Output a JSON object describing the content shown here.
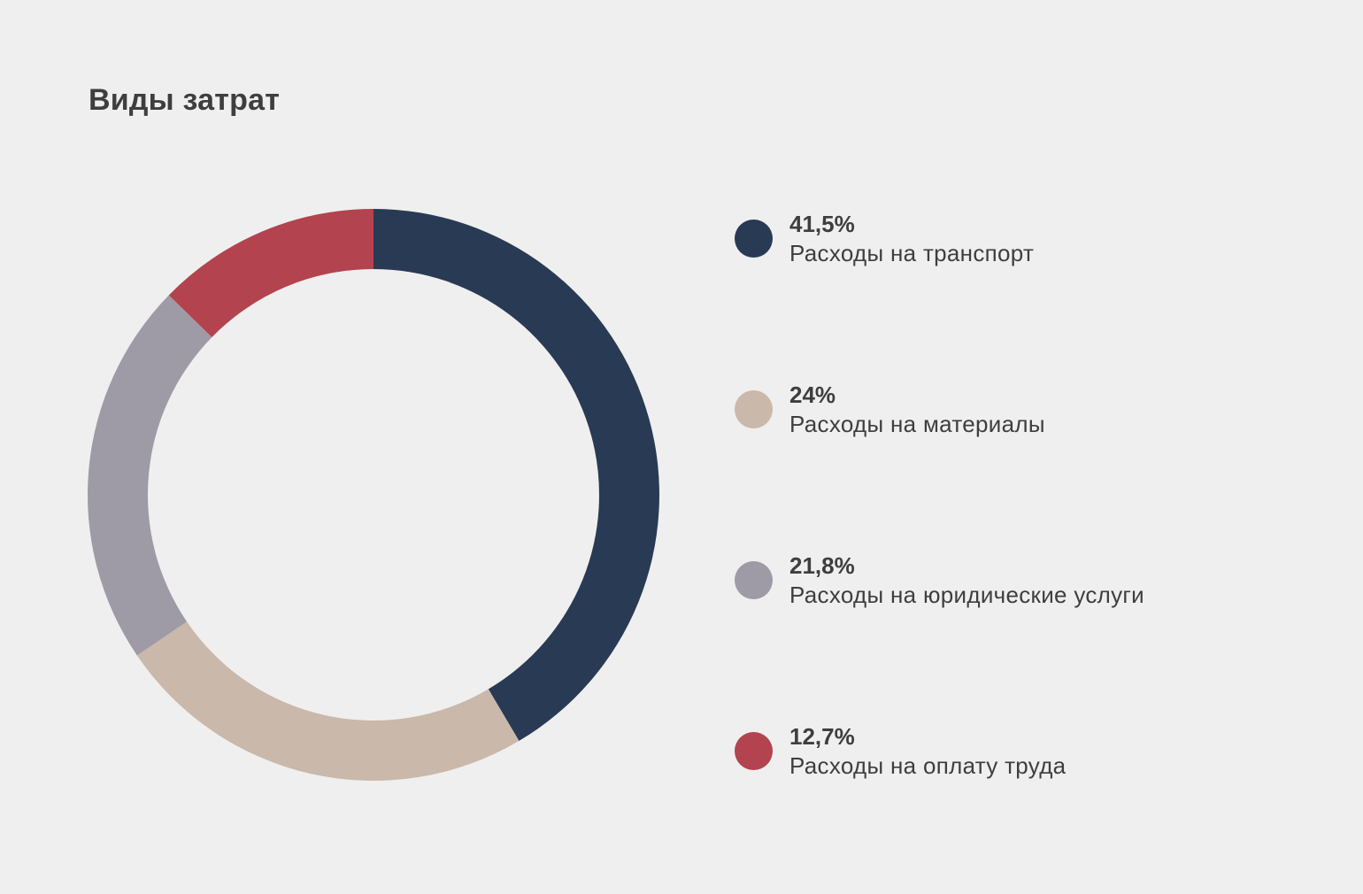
{
  "chart_data": {
    "type": "pie",
    "title": "Виды затрат",
    "style": "donut",
    "slices": [
      {
        "value": 41.5,
        "value_label": "41,5%",
        "label": "Расходы на транспорт",
        "color": "#293a55"
      },
      {
        "value": 24,
        "value_label": "24%",
        "label": "Расходы на материалы",
        "color": "#cab8aa"
      },
      {
        "value": 21.8,
        "value_label": "21,8%",
        "label": "Расходы на юридические услуги",
        "color": "#9e9ba7"
      },
      {
        "value": 12.7,
        "value_label": "12,7%",
        "label": "Расходы на оплату труда",
        "color": "#b3434e"
      }
    ],
    "legend_position": "right"
  }
}
